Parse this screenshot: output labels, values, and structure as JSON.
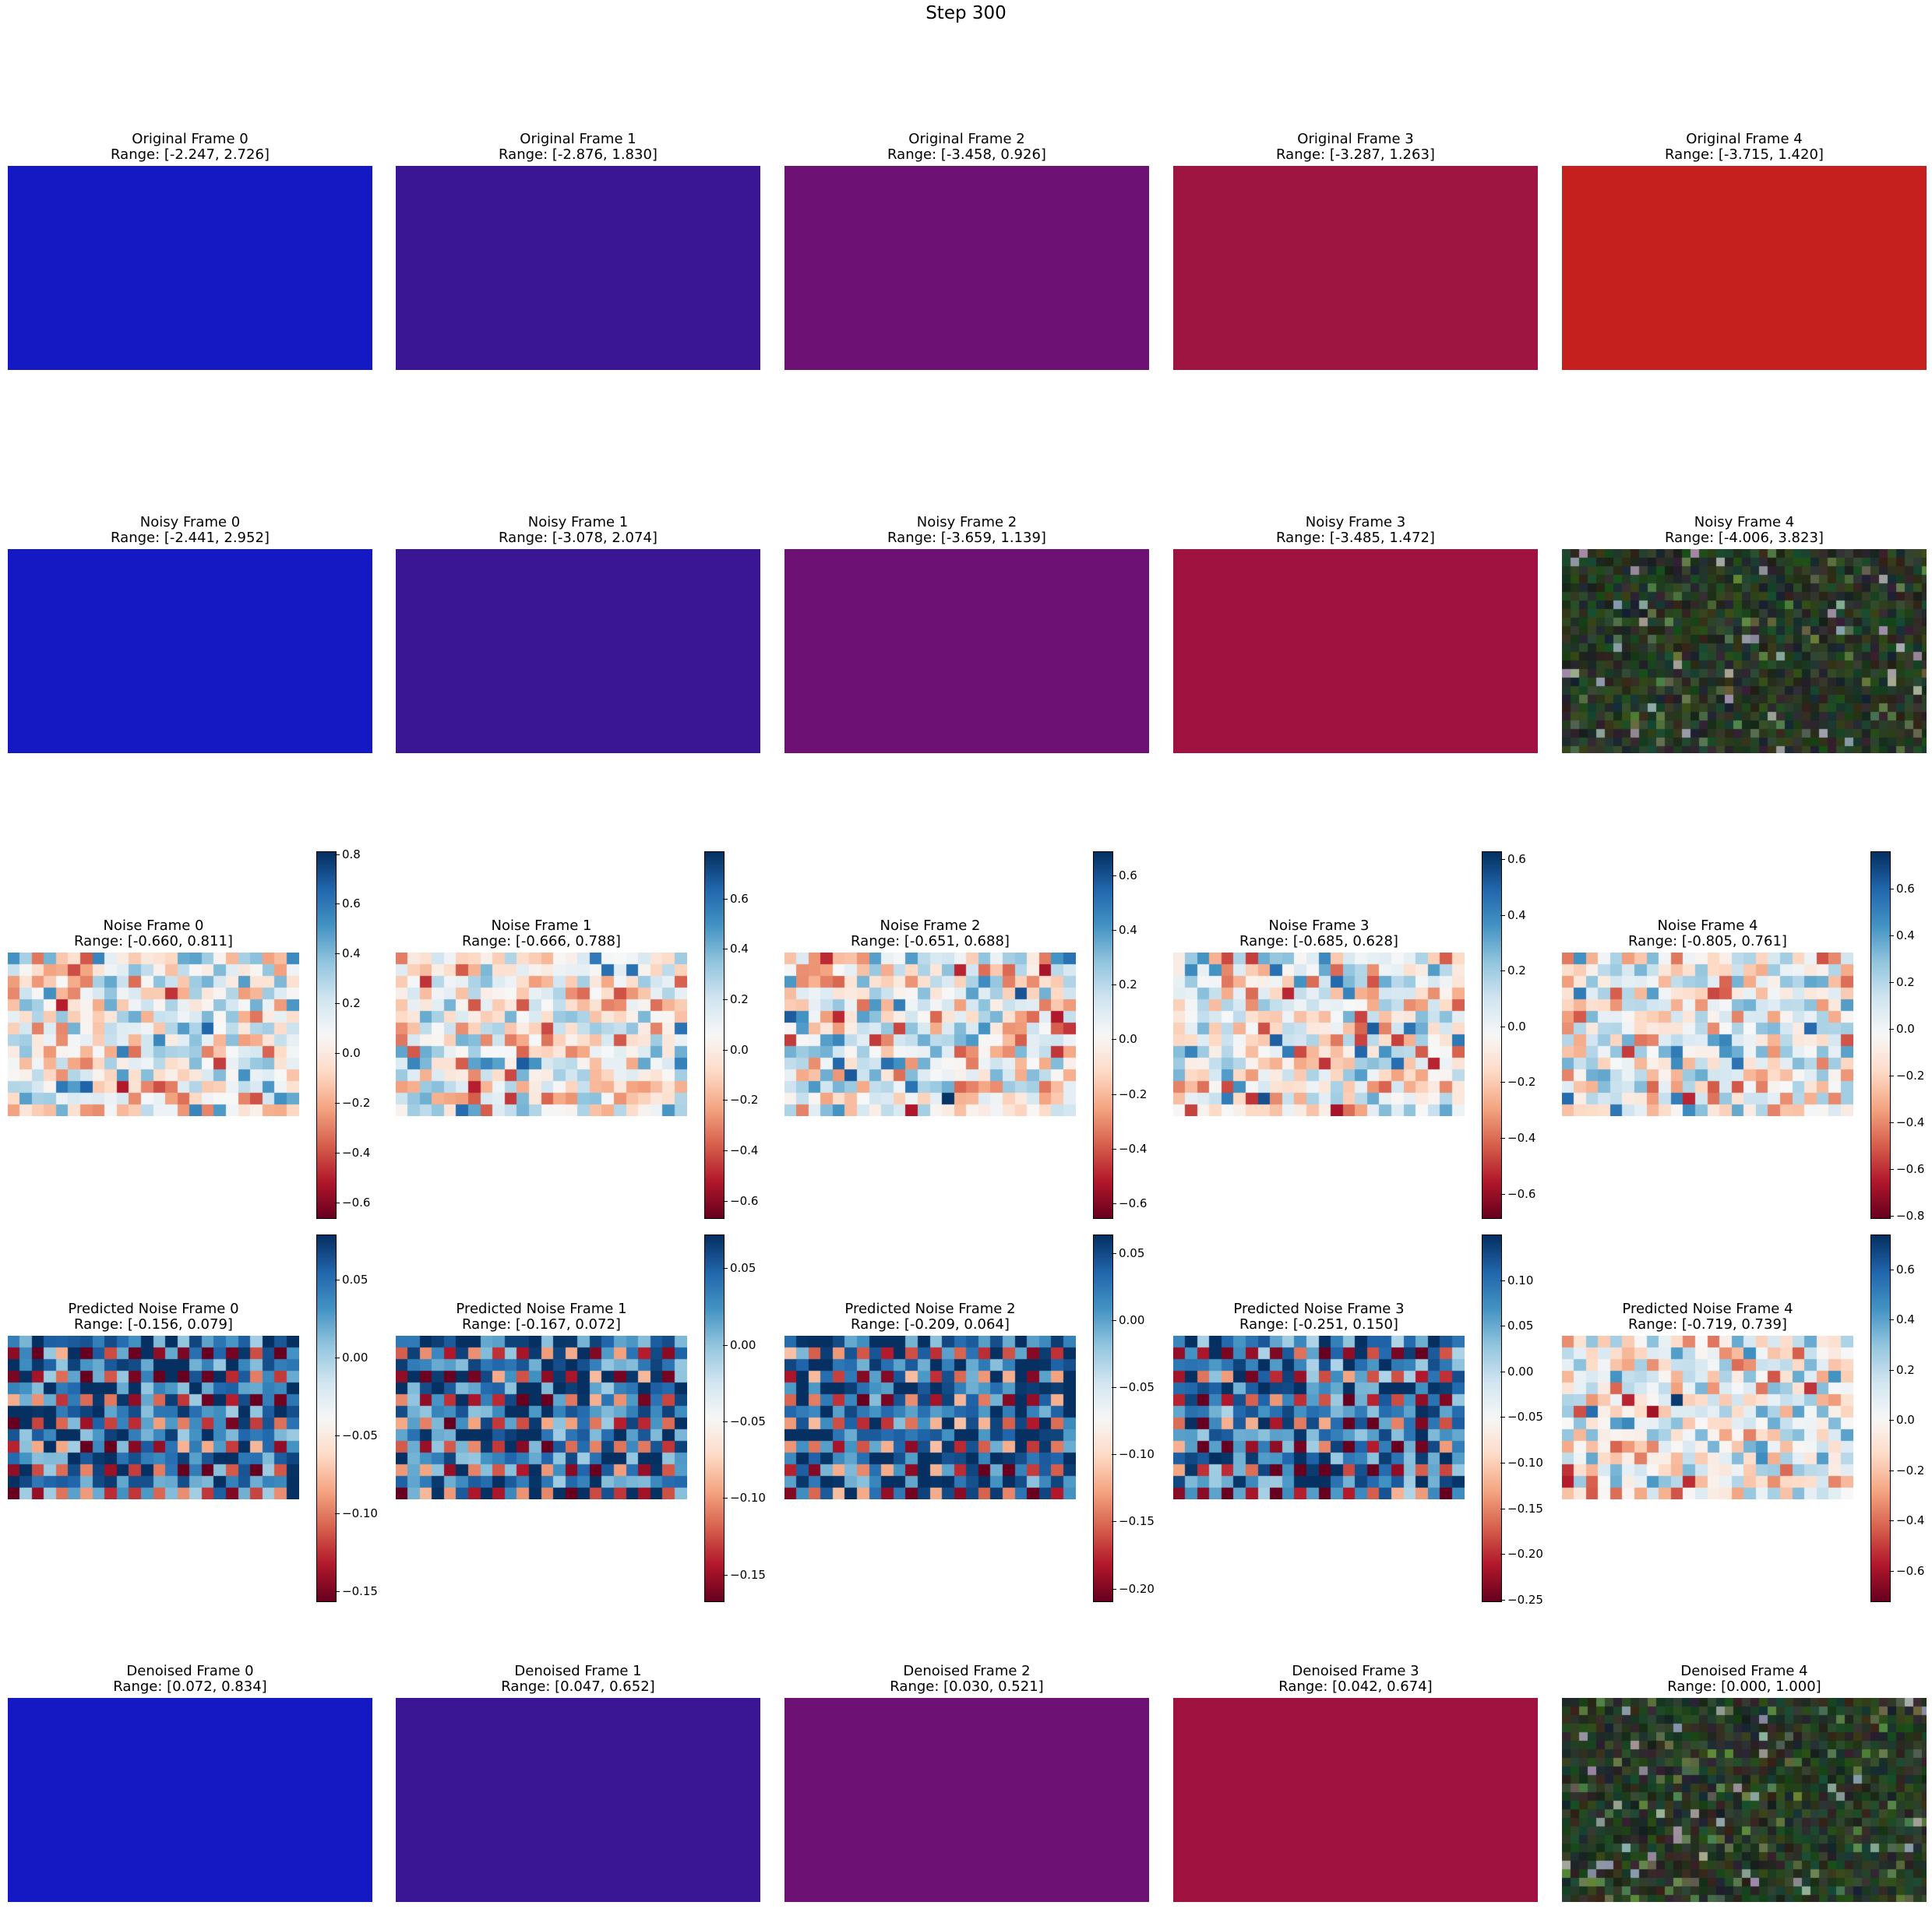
{
  "figure": {
    "suptitle": "Step 300"
  },
  "chart_data": {
    "type": "heatmap",
    "title": "Step 300",
    "colormap": "RdBu",
    "rows": [
      {
        "row_name": "Original",
        "kind": "solid",
        "panels": [
          {
            "title": "Original Frame 0",
            "range_label": "Range: [-2.247, 2.726]",
            "range": [
              -2.247,
              2.726
            ],
            "color": "#1519C4"
          },
          {
            "title": "Original Frame 1",
            "range_label": "Range: [-2.876, 1.830]",
            "range": [
              -2.876,
              1.83
            ],
            "color": "#3A1594"
          },
          {
            "title": "Original Frame 2",
            "range_label": "Range: [-3.458, 0.926]",
            "range": [
              -3.458,
              0.926
            ],
            "color": "#6E1174"
          },
          {
            "title": "Original Frame 3",
            "range_label": "Range: [-3.287, 1.263]",
            "range": [
              -3.287,
              1.263
            ],
            "color": "#9E1541"
          },
          {
            "title": "Original Frame 4",
            "range_label": "Range: [-3.715, 1.420]",
            "range": [
              -3.715,
              1.42
            ],
            "color": "#C5201E"
          }
        ]
      },
      {
        "row_name": "Noisy",
        "kind": "solid",
        "panels": [
          {
            "title": "Noisy Frame 0",
            "range_label": "Range: [-2.441, 2.952]",
            "range": [
              -2.441,
              2.952
            ],
            "color": "#1519C4"
          },
          {
            "title": "Noisy Frame 1",
            "range_label": "Range: [-3.078, 2.074]",
            "range": [
              -3.078,
              2.074
            ],
            "color": "#3A1594"
          },
          {
            "title": "Noisy Frame 2",
            "range_label": "Range: [-3.659, 1.139]",
            "range": [
              -3.659,
              1.139
            ],
            "color": "#6E1174"
          },
          {
            "title": "Noisy Frame 3",
            "range_label": "Range: [-3.485, 1.472]",
            "range": [
              -3.485,
              1.472
            ],
            "color": "#A01240"
          },
          {
            "title": "Noisy Frame 4",
            "range_label": "Range: [-4.006, 3.823]",
            "range": [
              -4.006,
              3.823
            ],
            "color": "texture"
          }
        ]
      },
      {
        "row_name": "Noise",
        "kind": "heatmap",
        "panels": [
          {
            "title": "Noise Frame 0",
            "range_label": "Range: [-0.660, 0.811]",
            "range": [
              -0.66,
              0.811
            ],
            "cbar_ticks": [
              0.8,
              0.6,
              0.4,
              0.2,
              0.0,
              -0.2,
              -0.4,
              -0.6
            ],
            "cbar_tick_labels": [
              "0.8",
              "0.6",
              "0.4",
              "0.2",
              "0.0",
              "−0.2",
              "−0.4",
              "−0.6"
            ]
          },
          {
            "title": "Noise Frame 1",
            "range_label": "Range: [-0.666, 0.788]",
            "range": [
              -0.666,
              0.788
            ],
            "cbar_ticks": [
              0.6,
              0.4,
              0.2,
              0.0,
              -0.2,
              -0.4,
              -0.6
            ],
            "cbar_tick_labels": [
              "0.6",
              "0.4",
              "0.2",
              "0.0",
              "−0.2",
              "−0.4",
              "−0.6"
            ]
          },
          {
            "title": "Noise Frame 2",
            "range_label": "Range: [-0.651, 0.688]",
            "range": [
              -0.651,
              0.688
            ],
            "cbar_ticks": [
              0.6,
              0.4,
              0.2,
              0.0,
              -0.2,
              -0.4,
              -0.6
            ],
            "cbar_tick_labels": [
              "0.6",
              "0.4",
              "0.2",
              "0.0",
              "−0.2",
              "−0.4",
              "−0.6"
            ]
          },
          {
            "title": "Noise Frame 3",
            "range_label": "Range: [-0.685, 0.628]",
            "range": [
              -0.685,
              0.628
            ],
            "cbar_ticks": [
              0.6,
              0.4,
              0.2,
              0.0,
              -0.2,
              -0.4,
              -0.6
            ],
            "cbar_tick_labels": [
              "0.6",
              "0.4",
              "0.2",
              "0.0",
              "−0.2",
              "−0.4",
              "−0.6"
            ]
          },
          {
            "title": "Noise Frame 4",
            "range_label": "Range: [-0.805, 0.761]",
            "range": [
              -0.805,
              0.761
            ],
            "cbar_ticks": [
              0.6,
              0.4,
              0.2,
              0.0,
              -0.2,
              -0.4,
              -0.6,
              -0.8
            ],
            "cbar_tick_labels": [
              "0.6",
              "0.4",
              "0.2",
              "0.0",
              "−0.2",
              "−0.4",
              "−0.6",
              "−0.8"
            ]
          }
        ]
      },
      {
        "row_name": "Predicted Noise",
        "kind": "heatmap",
        "panels": [
          {
            "title": "Predicted Noise Frame 0",
            "range_label": "Range: [-0.156, 0.079]",
            "range": [
              -0.156,
              0.079
            ],
            "cbar_ticks": [
              0.05,
              0.0,
              -0.05,
              -0.1,
              -0.15
            ],
            "cbar_tick_labels": [
              "0.05",
              "0.00",
              "−0.05",
              "−0.10",
              "−0.15"
            ]
          },
          {
            "title": "Predicted Noise Frame 1",
            "range_label": "Range: [-0.167, 0.072]",
            "range": [
              -0.167,
              0.072
            ],
            "cbar_ticks": [
              0.05,
              0.0,
              -0.05,
              -0.1,
              -0.15
            ],
            "cbar_tick_labels": [
              "0.05",
              "0.00",
              "−0.05",
              "−0.10",
              "−0.15"
            ]
          },
          {
            "title": "Predicted Noise Frame 2",
            "range_label": "Range: [-0.209, 0.064]",
            "range": [
              -0.209,
              0.064
            ],
            "cbar_ticks": [
              0.05,
              0.0,
              -0.05,
              -0.1,
              -0.15,
              -0.2
            ],
            "cbar_tick_labels": [
              "0.05",
              "0.00",
              "−0.05",
              "−0.10",
              "−0.15",
              "−0.20"
            ]
          },
          {
            "title": "Predicted Noise Frame 3",
            "range_label": "Range: [-0.251, 0.150]",
            "range": [
              -0.251,
              0.15
            ],
            "cbar_ticks": [
              0.1,
              0.05,
              0.0,
              -0.05,
              -0.1,
              -0.15,
              -0.2,
              -0.25
            ],
            "cbar_tick_labels": [
              "0.10",
              "0.05",
              "0.00",
              "−0.05",
              "−0.10",
              "−0.15",
              "−0.20",
              "−0.25"
            ]
          },
          {
            "title": "Predicted Noise Frame 4",
            "range_label": "Range: [-0.719, 0.739]",
            "range": [
              -0.719,
              0.739
            ],
            "cbar_ticks": [
              0.6,
              0.4,
              0.2,
              0.0,
              -0.2,
              -0.4,
              -0.6
            ],
            "cbar_tick_labels": [
              "0.6",
              "0.4",
              "0.2",
              "0.0",
              "−0.2",
              "−0.4",
              "−0.6"
            ]
          }
        ]
      },
      {
        "row_name": "Denoised",
        "kind": "solid",
        "panels": [
          {
            "title": "Denoised Frame 0",
            "range_label": "Range: [0.072, 0.834]",
            "range": [
              0.072,
              0.834
            ],
            "color": "#1519C4"
          },
          {
            "title": "Denoised Frame 1",
            "range_label": "Range: [0.047, 0.652]",
            "range": [
              0.047,
              0.652
            ],
            "color": "#3A1594"
          },
          {
            "title": "Denoised Frame 2",
            "range_label": "Range: [0.030, 0.521]",
            "range": [
              0.03,
              0.521
            ],
            "color": "#6E1174"
          },
          {
            "title": "Denoised Frame 3",
            "range_label": "Range: [0.042, 0.674]",
            "range": [
              0.042,
              0.674
            ],
            "color": "#A01240"
          },
          {
            "title": "Denoised Frame 4",
            "range_label": "Range: [0.000, 1.000]",
            "range": [
              0.0,
              1.0
            ],
            "color": "texture"
          }
        ]
      }
    ]
  }
}
